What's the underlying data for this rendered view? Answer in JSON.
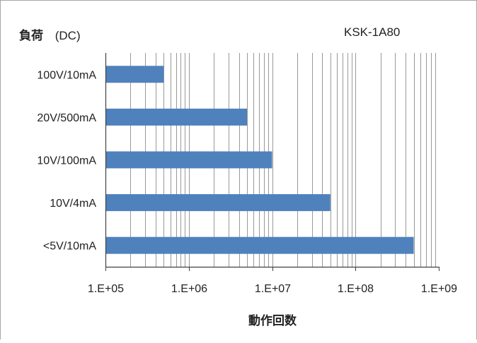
{
  "chart_data": {
    "type": "bar",
    "orientation": "horizontal",
    "title": "KSK-1A80",
    "ylabel_bold": "負荷",
    "ylabel_suffix": "(DC)",
    "xlabel": "動作回数",
    "x_scale": "log",
    "xlim": [
      100000,
      1000000000
    ],
    "x_tick_values": [
      100000,
      1000000,
      10000000,
      100000000,
      1000000000
    ],
    "x_tick_labels": [
      "1.E+05",
      "1.E+06",
      "1.E+07",
      "1.E+08",
      "1.E+09"
    ],
    "categories": [
      "100V/10mA",
      "20V/500mA",
      "10V/100mA",
      "10V/4mA",
      "<5V/10mA"
    ],
    "values": [
      500000,
      5000000,
      10000000,
      50000000,
      500000000
    ],
    "grid": "vertical major and minor (log)",
    "colors": {
      "bar": "#4F81BD",
      "grid": "#999999",
      "axis": "#404040",
      "frame": "#a6a6a6"
    }
  }
}
